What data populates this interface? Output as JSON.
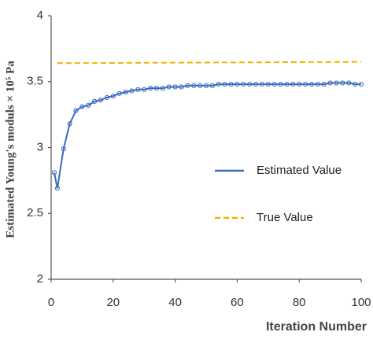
{
  "chart_data": {
    "type": "line",
    "xlabel": "Iteration Number",
    "ylabel": "Estimated Young's moduls × 10⁵ Pa",
    "xlim": [
      0,
      100
    ],
    "xticks": [
      0,
      20,
      40,
      60,
      80,
      100
    ],
    "ylim": [
      2,
      4
    ],
    "yticks": [
      2,
      2.5,
      3,
      3.5,
      4
    ],
    "series": [
      {
        "name": "Estimated Value",
        "color": "#3a6bbf",
        "marker": "circle",
        "x": [
          1,
          2,
          4,
          6,
          8,
          10,
          12,
          14,
          16,
          18,
          20,
          22,
          24,
          26,
          28,
          30,
          32,
          34,
          36,
          38,
          40,
          42,
          44,
          46,
          48,
          50,
          52,
          54,
          56,
          58,
          60,
          62,
          64,
          66,
          68,
          70,
          72,
          74,
          76,
          78,
          80,
          82,
          84,
          86,
          88,
          90,
          92,
          94,
          96,
          98,
          100
        ],
        "values": [
          2.81,
          2.69,
          2.99,
          3.18,
          3.28,
          3.31,
          3.32,
          3.35,
          3.36,
          3.38,
          3.39,
          3.41,
          3.42,
          3.43,
          3.44,
          3.44,
          3.45,
          3.45,
          3.45,
          3.46,
          3.46,
          3.46,
          3.47,
          3.47,
          3.47,
          3.47,
          3.47,
          3.48,
          3.48,
          3.48,
          3.48,
          3.48,
          3.48,
          3.48,
          3.48,
          3.48,
          3.48,
          3.48,
          3.48,
          3.48,
          3.48,
          3.48,
          3.48,
          3.48,
          3.48,
          3.49,
          3.49,
          3.49,
          3.49,
          3.48,
          3.48
        ]
      },
      {
        "name": "True Value",
        "color": "#f0b400",
        "dash": true,
        "x": [
          2,
          100
        ],
        "values": [
          3.64,
          3.65
        ]
      }
    ]
  }
}
